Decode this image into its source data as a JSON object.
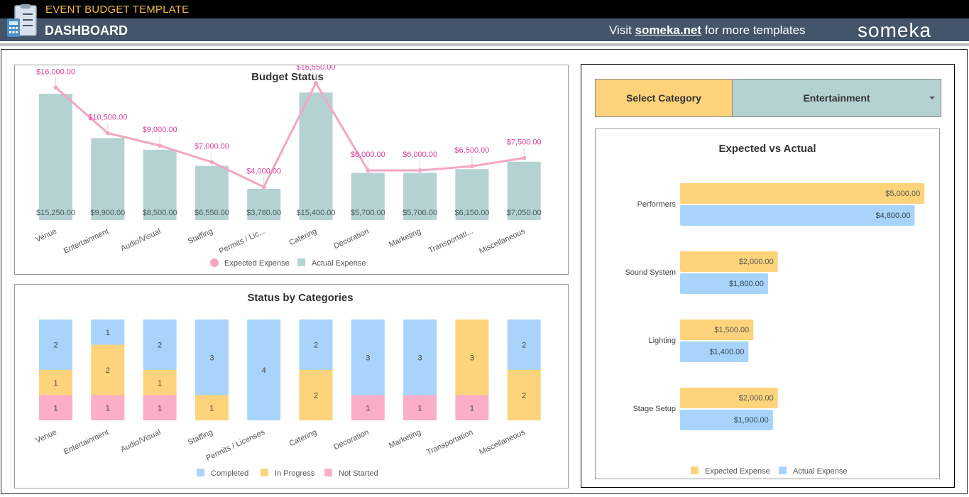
{
  "header": {
    "app_title": "EVENT BUDGET TEMPLATE",
    "page_title": "DASHBOARD",
    "visit_prefix": "Visit ",
    "visit_link": "someka.net",
    "visit_suffix": " for more templates",
    "brand": "someka"
  },
  "selector": {
    "label": "Select Category",
    "value": "Entertainment"
  },
  "colors": {
    "expected_line": "#f4a6c4",
    "expected_label": "#e0409a",
    "actual_bar": "#b4d2d2",
    "completed": "#a8d4fb",
    "in_progress": "#fdd37b",
    "not_started": "#fbaec8"
  },
  "chart_data": [
    {
      "type": "bar",
      "title": "Budget Status",
      "categories": [
        "Venue",
        "Entertainment",
        "Audio/Visual",
        "Staffing",
        "Permits / Lic...",
        "Catering",
        "Decoration",
        "Marketing",
        "Transportati...",
        "Miscellaneous"
      ],
      "series": [
        {
          "name": "Expected Expense",
          "type": "line",
          "values": [
            16000,
            10500,
            9000,
            7000,
            4000,
            16550,
            6000,
            6000,
            6500,
            7500
          ],
          "labels": [
            "$16,000.00",
            "$10,500.00",
            "$9,000.00",
            "$7,000.00",
            "$4,000.00",
            "$16,550.00",
            "$6,000.00",
            "$6,000.00",
            "$6,500.00",
            "$7,500.00"
          ]
        },
        {
          "name": "Actual Expense",
          "type": "bar",
          "values": [
            15250,
            9900,
            8500,
            6550,
            3780,
            15400,
            5700,
            5700,
            6150,
            7050
          ],
          "labels": [
            "$15,250.00",
            "$9,900.00",
            "$8,500.00",
            "$6,550.00",
            "$3,780.00",
            "$15,400.00",
            "$5,700.00",
            "$5,700.00",
            "$6,150.00",
            "$7,050.00"
          ]
        }
      ],
      "ylim": [
        0,
        18000
      ],
      "legend": "bottom"
    },
    {
      "type": "bar",
      "stacked": true,
      "title": "Status by Categories",
      "categories": [
        "Venue",
        "Entertainment",
        "Audio/Visual",
        "Staffing",
        "Permits / Licenses",
        "Catering",
        "Decoration",
        "Marketing",
        "Transportation",
        "Miscellaneous"
      ],
      "series": [
        {
          "name": "Completed",
          "values": [
            2,
            1,
            2,
            3,
            4,
            2,
            3,
            3,
            0,
            2
          ]
        },
        {
          "name": "In Progress",
          "values": [
            1,
            2,
            1,
            1,
            0,
            2,
            0,
            0,
            3,
            2
          ]
        },
        {
          "name": "Not Started",
          "values": [
            1,
            1,
            1,
            0,
            0,
            0,
            1,
            1,
            1,
            0
          ]
        }
      ],
      "legend": "bottom"
    },
    {
      "type": "bar",
      "orientation": "horizontal",
      "title": "Expected vs Actual",
      "categories": [
        "Performers",
        "Sound System",
        "Lighting",
        "Stage Setup"
      ],
      "series": [
        {
          "name": "Expected Expense",
          "values": [
            5000,
            2000,
            1500,
            2000
          ],
          "labels": [
            "$5,000.00",
            "$2,000.00",
            "$1,500.00",
            "$2,000.00"
          ]
        },
        {
          "name": "Actual Expense",
          "values": [
            4800,
            1800,
            1400,
            1900
          ],
          "labels": [
            "$4,800.00",
            "$1,800.00",
            "$1,400.00",
            "$1,900.00"
          ]
        }
      ],
      "xlim": [
        0,
        5200
      ],
      "legend": "bottom"
    }
  ]
}
